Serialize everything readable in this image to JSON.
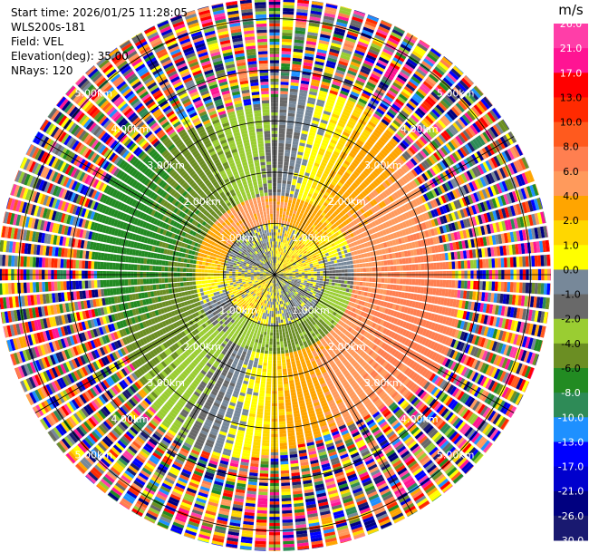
{
  "info": {
    "start_time": "Start time: 2026/01/25 11:28:05",
    "station": "WLS200s-181",
    "field": "Field: VEL",
    "elevation": "Elevation(deg): 35.00",
    "nrays": "NRays: 120"
  },
  "colorbar": {
    "unit": "m/s",
    "ticks": [
      "26.0",
      "21.0",
      "17.0",
      "13.0",
      "10.0",
      "8.0",
      "6.0",
      "4.0",
      "2.0",
      "1.0",
      "0.0",
      "-1.0",
      "-2.0",
      "-4.0",
      "-6.0",
      "-8.0",
      "-10.0",
      "-13.0",
      "-17.0",
      "-21.0",
      "-26.0",
      "-30.0"
    ],
    "colors": [
      "#ff3ea8",
      "#ff1493",
      "#ff0000",
      "#ff2a00",
      "#ff5a1e",
      "#ff7f50",
      "#ff9a5c",
      "#ffa500",
      "#ffd700",
      "#ffff00",
      "#778899",
      "#696969",
      "#9acd32",
      "#6b8e23",
      "#228b22",
      "#2e8b57",
      "#1e90ff",
      "#0000ff",
      "#0000cd",
      "#000080",
      "#191970"
    ]
  },
  "chart_data": {
    "type": "heatmap",
    "field": "VEL",
    "unit": "m/s",
    "nrays": 120,
    "elevation_deg": 35.0,
    "range_rings_km": [
      1.0,
      2.0,
      3.0,
      4.0,
      5.0
    ],
    "ring_labels": [
      "1.00km",
      "2.00km",
      "3.00km",
      "4.00km",
      "5.00km"
    ],
    "max_range_km": 5.4,
    "azimuth_lines_deg": [
      0,
      30,
      60,
      90,
      120,
      150,
      180,
      210,
      240,
      270,
      300,
      330
    ],
    "velocity_profile": [
      {
        "range_km": [
          0.0,
          0.5
        ],
        "description_values": [
          -1.0,
          0.0,
          4.0
        ]
      },
      {
        "range_km": [
          0.5,
          1.0
        ],
        "description_values": [
          -2.0,
          0.0,
          1.0
        ]
      },
      {
        "range_km": [
          1.0,
          1.5
        ],
        "description_values": [
          -4.0,
          4.0,
          6.0
        ]
      },
      {
        "range_km": [
          1.5,
          2.5
        ],
        "description_values": [
          -6.0,
          -4.0,
          4.0,
          6.0
        ]
      },
      {
        "range_km": [
          2.5,
          3.4
        ],
        "description_values": [
          -8.0,
          -6.0,
          6.0,
          8.0
        ]
      },
      {
        "range_km": [
          3.4,
          5.4
        ],
        "description_values": "noise"
      }
    ]
  }
}
